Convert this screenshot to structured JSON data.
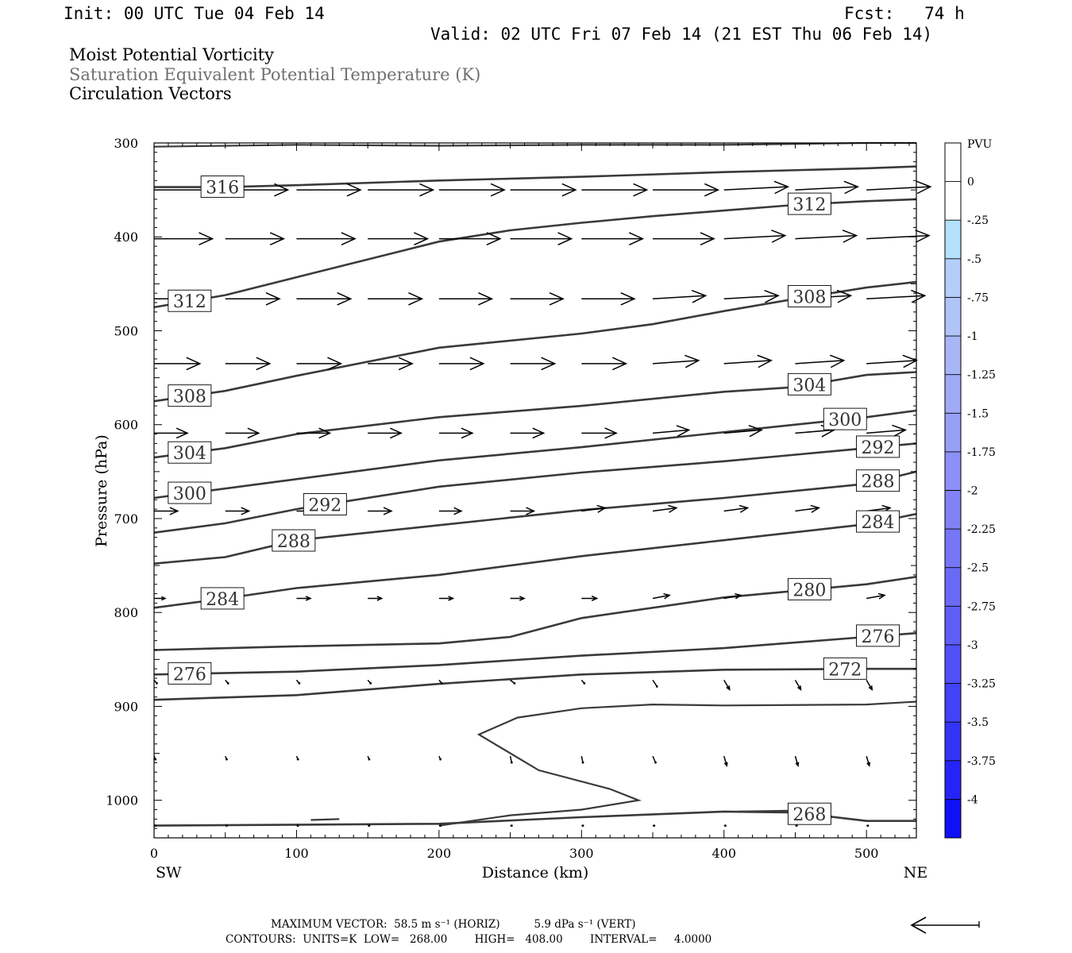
{
  "header": {
    "init": "Init: 00 UTC Tue 04 Feb 14",
    "fcst": "Fcst:   74 h",
    "valid": "Valid: 02 UTC Fri 07 Feb 14 (21 EST Thu 06 Feb 14)",
    "fields": [
      {
        "text": "Moist Potential Vorticity",
        "color": "#000000"
      },
      {
        "text": "Saturation Equivalent Potential Temperature (K)",
        "color": "#707070"
      },
      {
        "text": "Circulation Vectors",
        "color": "#000000"
      }
    ]
  },
  "footer": {
    "max_vector": "MAXIMUM VECTOR:  58.5 m s⁻¹ (HORIZ)          5.9 dPa s⁻¹ (VERT)",
    "contours": "CONTOURS:  UNITS=K  LOW=   268.00        HIGH=   408.00        INTERVAL=     4.0000"
  },
  "chart_data": {
    "type": "cross-section",
    "xlabel": "Distance (km)",
    "ylabel": "Pressure (hPa)",
    "xlim": [
      0,
      535
    ],
    "ylim": [
      1040,
      300
    ],
    "x_ticks": [
      0,
      100,
      200,
      300,
      400,
      500
    ],
    "y_ticks": [
      300,
      400,
      500,
      600,
      700,
      800,
      900,
      1000
    ],
    "x_end_labels": {
      "left": "SW",
      "right": "NE"
    },
    "colorbar": {
      "unit": "PVU",
      "labels": [
        "0",
        "-.25",
        "-.5",
        "-.75",
        "-1",
        "-1.25",
        "-1.5",
        "-1.75",
        "-2",
        "-2.25",
        "-2.5",
        "-2.75",
        "-3",
        "-3.25",
        "-3.5",
        "-3.75",
        "-4"
      ],
      "colors": [
        "#ffffff",
        "#ffffff",
        "#b4e1fb",
        "#b4cefa",
        "#b0c4f8",
        "#a8b6f6",
        "#a0aaf6",
        "#989ff6",
        "#8d90f6",
        "#8282f6",
        "#7676f6",
        "#6a6af6",
        "#5e5ef6",
        "#5050f6",
        "#4242f6",
        "#3434f6",
        "#2424f6",
        "#1010f6"
      ]
    },
    "contours": [
      {
        "label": "316",
        "points": [
          [
            0,
            347
          ],
          [
            50,
            347
          ],
          [
            100,
            345
          ],
          [
            200,
            340
          ],
          [
            300,
            336
          ],
          [
            400,
            331
          ],
          [
            500,
            327
          ],
          [
            535,
            325
          ]
        ]
      },
      {
        "label": "312",
        "points": [
          [
            0,
            475
          ],
          [
            50,
            462
          ],
          [
            100,
            443
          ],
          [
            200,
            405
          ],
          [
            250,
            393
          ],
          [
            300,
            385
          ],
          [
            350,
            378
          ],
          [
            400,
            372
          ],
          [
            450,
            366
          ],
          [
            500,
            362
          ],
          [
            535,
            360
          ]
        ]
      },
      {
        "label": "308",
        "points": [
          [
            0,
            575
          ],
          [
            50,
            564
          ],
          [
            100,
            548
          ],
          [
            200,
            518
          ],
          [
            300,
            503
          ],
          [
            350,
            493
          ],
          [
            400,
            479
          ],
          [
            450,
            466
          ],
          [
            500,
            454
          ],
          [
            535,
            448
          ]
        ]
      },
      {
        "label": "304",
        "points": [
          [
            0,
            635
          ],
          [
            50,
            625
          ],
          [
            100,
            610
          ],
          [
            200,
            592
          ],
          [
            300,
            580
          ],
          [
            400,
            565
          ],
          [
            450,
            560
          ],
          [
            500,
            547
          ],
          [
            535,
            544
          ]
        ]
      },
      {
        "label": "300",
        "points": [
          [
            0,
            678
          ],
          [
            100,
            658
          ],
          [
            200,
            638
          ],
          [
            300,
            624
          ],
          [
            400,
            608
          ],
          [
            500,
            592
          ],
          [
            535,
            585
          ]
        ]
      },
      {
        "label": "292",
        "points": [
          [
            0,
            715
          ],
          [
            50,
            705
          ],
          [
            100,
            690
          ],
          [
            200,
            666
          ],
          [
            300,
            651
          ],
          [
            400,
            639
          ],
          [
            500,
            625
          ],
          [
            535,
            620
          ]
        ]
      },
      {
        "label": "288",
        "points": [
          [
            0,
            748
          ],
          [
            50,
            741
          ],
          [
            100,
            723
          ],
          [
            200,
            707
          ],
          [
            300,
            691
          ],
          [
            400,
            678
          ],
          [
            500,
            663
          ],
          [
            535,
            650
          ]
        ]
      },
      {
        "label": "284",
        "points": [
          [
            0,
            795
          ],
          [
            50,
            785
          ],
          [
            100,
            774
          ],
          [
            200,
            760
          ],
          [
            300,
            740
          ],
          [
            400,
            723
          ],
          [
            500,
            706
          ],
          [
            535,
            695
          ]
        ]
      },
      {
        "label": "280",
        "points": [
          [
            0,
            840
          ],
          [
            100,
            836
          ],
          [
            200,
            833
          ],
          [
            250,
            826
          ],
          [
            300,
            806
          ],
          [
            400,
            784
          ],
          [
            500,
            770
          ],
          [
            535,
            762
          ]
        ]
      },
      {
        "label": "276",
        "points": [
          [
            0,
            866
          ],
          [
            100,
            863
          ],
          [
            200,
            856
          ],
          [
            300,
            846
          ],
          [
            400,
            838
          ],
          [
            500,
            826
          ],
          [
            535,
            822
          ]
        ]
      },
      {
        "label": "272",
        "points": [
          [
            0,
            893
          ],
          [
            100,
            888
          ],
          [
            200,
            876
          ],
          [
            300,
            866
          ],
          [
            400,
            861
          ],
          [
            500,
            860
          ],
          [
            535,
            860
          ]
        ]
      },
      {
        "label": "268",
        "points": [
          [
            0,
            1027
          ],
          [
            200,
            1025
          ],
          [
            300,
            1018
          ],
          [
            400,
            1012
          ],
          [
            450,
            1013
          ],
          [
            500,
            1022
          ],
          [
            535,
            1022
          ]
        ]
      }
    ],
    "extra_contours": [
      [
        [
          200,
          1027
        ],
        [
          250,
          1016
        ],
        [
          300,
          1010
        ],
        [
          340,
          1000
        ],
        [
          320,
          988
        ],
        [
          270,
          968
        ],
        [
          228,
          930
        ],
        [
          255,
          912
        ],
        [
          300,
          902
        ],
        [
          350,
          898
        ],
        [
          400,
          899
        ],
        [
          500,
          898
        ],
        [
          535,
          895
        ]
      ],
      [
        [
          0,
          304
        ],
        [
          100,
          302
        ],
        [
          200,
          303
        ],
        [
          300,
          302
        ],
        [
          400,
          302
        ],
        [
          500,
          300
        ],
        [
          535,
          300
        ]
      ],
      [
        [
          110,
          1021
        ],
        [
          130,
          1020
        ]
      ],
      [
        [
          410,
          1012
        ],
        [
          450,
          1011
        ]
      ]
    ],
    "vectors": [
      {
        "p": 350,
        "x": [
          0,
          50,
          100,
          150,
          200,
          250,
          300,
          350,
          400,
          450,
          500
        ],
        "u": [
          45,
          45,
          46,
          47,
          47,
          47,
          47,
          47,
          46,
          45,
          46
        ],
        "w": [
          0,
          0,
          0,
          0,
          0,
          0,
          0,
          0,
          1,
          1,
          1
        ]
      },
      {
        "p": 402,
        "x": [
          0,
          50,
          100,
          150,
          200,
          250,
          300,
          350,
          400,
          450,
          500
        ],
        "u": [
          42,
          42,
          42,
          43,
          44,
          44,
          44,
          44,
          44,
          44,
          45
        ],
        "w": [
          0,
          0,
          0,
          0,
          0,
          0,
          0,
          0,
          1,
          1,
          1
        ]
      },
      {
        "p": 466,
        "x": [
          0,
          50,
          100,
          150,
          200,
          250,
          300,
          350,
          400,
          450,
          500
        ],
        "u": [
          38,
          39,
          39,
          39,
          38,
          38,
          38,
          38,
          39,
          40,
          42
        ],
        "w": [
          0,
          0,
          0,
          0,
          0,
          0,
          0,
          1,
          1,
          1,
          1
        ]
      },
      {
        "p": 535,
        "x": [
          0,
          50,
          100,
          150,
          200,
          250,
          300,
          350,
          400,
          450,
          500
        ],
        "u": [
          33,
          32,
          32,
          32,
          32,
          32,
          32,
          33,
          34,
          35,
          36
        ],
        "w": [
          0,
          0,
          0,
          0,
          0,
          0,
          0,
          1,
          1,
          1,
          1
        ]
      },
      {
        "p": 609,
        "x": [
          0,
          50,
          100,
          150,
          200,
          250,
          300,
          350,
          400,
          450,
          500
        ],
        "u": [
          24,
          24,
          24,
          24,
          24,
          24,
          25,
          26,
          27,
          28,
          28
        ],
        "w": [
          0,
          0,
          0,
          0,
          0,
          0,
          0,
          1,
          1,
          1,
          1
        ]
      },
      {
        "p": 692,
        "x": [
          0,
          50,
          100,
          150,
          200,
          250,
          300,
          350,
          400,
          450,
          500
        ],
        "u": [
          17,
          17,
          17,
          17,
          16,
          17,
          17,
          17,
          17,
          17,
          17
        ],
        "w": [
          0,
          0,
          0,
          0,
          0,
          0,
          1,
          1,
          1,
          1,
          1
        ]
      },
      {
        "p": 785,
        "x": [
          0,
          50,
          100,
          150,
          200,
          250,
          300,
          350,
          400,
          450,
          500
        ],
        "u": [
          8,
          9,
          10,
          10,
          10,
          10,
          11,
          12,
          12,
          13,
          13
        ],
        "w": [
          0,
          0,
          0,
          0,
          0,
          0,
          0,
          1,
          1,
          1,
          1
        ]
      },
      {
        "p": 872,
        "x": [
          0,
          50,
          100,
          150,
          200,
          250,
          300,
          350,
          400,
          450,
          500
        ],
        "u": [
          2,
          2,
          2,
          2,
          2,
          3,
          2,
          3,
          4,
          4,
          4
        ],
        "w": [
          -1,
          -1,
          -1,
          -1,
          -1,
          -1,
          -1,
          -2,
          -3,
          -3,
          -3
        ]
      },
      {
        "p": 953,
        "x": [
          0,
          50,
          100,
          150,
          200,
          250,
          300,
          350,
          400,
          450,
          500
        ],
        "u": [
          1,
          1,
          1,
          1,
          1,
          1,
          1,
          2,
          2,
          2,
          2
        ],
        "w": [
          -1,
          -1,
          -1,
          -1,
          -1,
          -2,
          -2,
          -2,
          -3,
          -3,
          -3
        ]
      },
      {
        "p": 1027,
        "x": [
          0,
          50,
          100,
          150,
          200,
          250,
          300,
          350,
          400,
          450,
          500
        ],
        "u": [
          1,
          1,
          1,
          1,
          1,
          1,
          1,
          1,
          1,
          1,
          1
        ],
        "w": [
          0,
          0,
          0,
          0,
          0,
          0,
          0,
          0,
          0,
          0,
          0
        ]
      }
    ]
  }
}
